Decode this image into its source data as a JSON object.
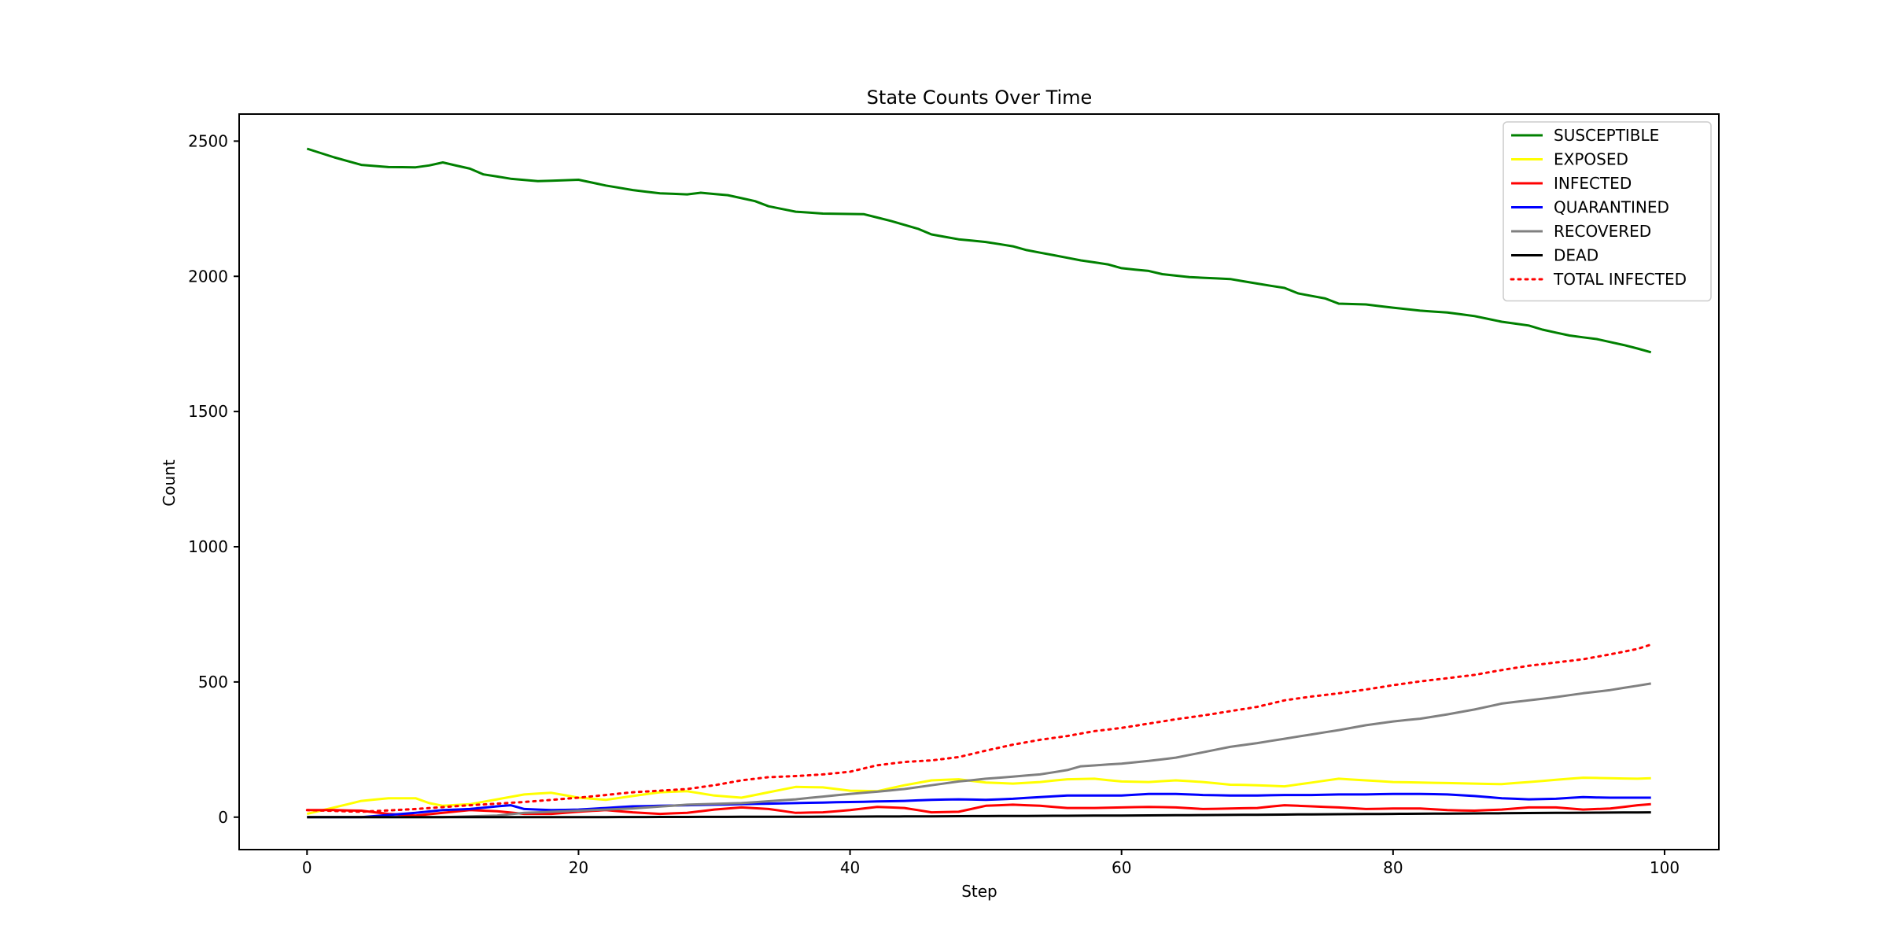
{
  "chart_data": {
    "type": "line",
    "title": "State Counts Over Time",
    "xlabel": "Step",
    "ylabel": "Count",
    "xlim": [
      -5,
      104
    ],
    "ylim": [
      -120,
      2600
    ],
    "xticks": [
      0,
      20,
      40,
      60,
      80,
      100
    ],
    "yticks": [
      0,
      500,
      1000,
      1500,
      2000,
      2500
    ],
    "grid": false,
    "legend_position": "top-right",
    "series": [
      {
        "name": "SUSCEPTIBLE",
        "color": "#008000",
        "style": "solid",
        "keyframes": [
          [
            0,
            2472
          ],
          [
            2,
            2440
          ],
          [
            4,
            2412
          ],
          [
            6,
            2404
          ],
          [
            8,
            2403
          ],
          [
            9,
            2410
          ],
          [
            10,
            2421
          ],
          [
            12,
            2398
          ],
          [
            13,
            2377
          ],
          [
            15,
            2361
          ],
          [
            17,
            2352
          ],
          [
            20,
            2357
          ],
          [
            22,
            2336
          ],
          [
            24,
            2319
          ],
          [
            26,
            2307
          ],
          [
            28,
            2303
          ],
          [
            29,
            2309
          ],
          [
            31,
            2300
          ],
          [
            33,
            2278
          ],
          [
            34,
            2259
          ],
          [
            36,
            2239
          ],
          [
            38,
            2232
          ],
          [
            41,
            2230
          ],
          [
            43,
            2205
          ],
          [
            45,
            2176
          ],
          [
            46,
            2155
          ],
          [
            48,
            2137
          ],
          [
            50,
            2127
          ],
          [
            52,
            2111
          ],
          [
            53,
            2097
          ],
          [
            55,
            2078
          ],
          [
            57,
            2059
          ],
          [
            59,
            2044
          ],
          [
            60,
            2030
          ],
          [
            62,
            2020
          ],
          [
            63,
            2008
          ],
          [
            65,
            1997
          ],
          [
            68,
            1990
          ],
          [
            70,
            1973
          ],
          [
            72,
            1957
          ],
          [
            73,
            1937
          ],
          [
            75,
            1918
          ],
          [
            76,
            1899
          ],
          [
            78,
            1896
          ],
          [
            80,
            1884
          ],
          [
            82,
            1873
          ],
          [
            84,
            1866
          ],
          [
            86,
            1853
          ],
          [
            88,
            1832
          ],
          [
            90,
            1818
          ],
          [
            91,
            1803
          ],
          [
            93,
            1781
          ],
          [
            95,
            1768
          ],
          [
            97,
            1746
          ],
          [
            98,
            1733
          ],
          [
            99,
            1719
          ]
        ]
      },
      {
        "name": "EXPOSED",
        "color": "#ffff00",
        "style": "solid",
        "keyframes": [
          [
            0,
            12
          ],
          [
            2,
            36
          ],
          [
            4,
            60
          ],
          [
            6,
            70
          ],
          [
            8,
            70
          ],
          [
            9,
            52
          ],
          [
            10,
            42
          ],
          [
            12,
            48
          ],
          [
            14,
            66
          ],
          [
            16,
            84
          ],
          [
            18,
            90
          ],
          [
            20,
            72
          ],
          [
            22,
            64
          ],
          [
            24,
            78
          ],
          [
            26,
            92
          ],
          [
            28,
            96
          ],
          [
            30,
            80
          ],
          [
            32,
            72
          ],
          [
            34,
            92
          ],
          [
            36,
            112
          ],
          [
            38,
            110
          ],
          [
            40,
            98
          ],
          [
            42,
            96
          ],
          [
            44,
            118
          ],
          [
            46,
            136
          ],
          [
            48,
            140
          ],
          [
            50,
            128
          ],
          [
            52,
            124
          ],
          [
            54,
            130
          ],
          [
            56,
            140
          ],
          [
            58,
            142
          ],
          [
            60,
            132
          ],
          [
            62,
            130
          ],
          [
            64,
            136
          ],
          [
            66,
            130
          ],
          [
            68,
            120
          ],
          [
            70,
            118
          ],
          [
            72,
            114
          ],
          [
            74,
            128
          ],
          [
            76,
            142
          ],
          [
            78,
            136
          ],
          [
            80,
            130
          ],
          [
            82,
            128
          ],
          [
            84,
            126
          ],
          [
            86,
            124
          ],
          [
            88,
            122
          ],
          [
            90,
            130
          ],
          [
            92,
            138
          ],
          [
            94,
            146
          ],
          [
            96,
            144
          ],
          [
            98,
            142
          ],
          [
            99,
            144
          ]
        ]
      },
      {
        "name": "INFECTED",
        "color": "#ff0000",
        "style": "solid",
        "keyframes": [
          [
            0,
            26
          ],
          [
            2,
            26
          ],
          [
            4,
            24
          ],
          [
            6,
            12
          ],
          [
            8,
            6
          ],
          [
            10,
            16
          ],
          [
            12,
            26
          ],
          [
            14,
            22
          ],
          [
            16,
            12
          ],
          [
            18,
            12
          ],
          [
            20,
            20
          ],
          [
            22,
            26
          ],
          [
            24,
            18
          ],
          [
            26,
            12
          ],
          [
            28,
            16
          ],
          [
            30,
            28
          ],
          [
            32,
            36
          ],
          [
            34,
            30
          ],
          [
            36,
            16
          ],
          [
            38,
            18
          ],
          [
            40,
            26
          ],
          [
            42,
            38
          ],
          [
            44,
            34
          ],
          [
            46,
            18
          ],
          [
            48,
            20
          ],
          [
            50,
            42
          ],
          [
            52,
            46
          ],
          [
            54,
            42
          ],
          [
            56,
            34
          ],
          [
            58,
            34
          ],
          [
            60,
            36
          ],
          [
            62,
            38
          ],
          [
            64,
            36
          ],
          [
            66,
            30
          ],
          [
            68,
            32
          ],
          [
            70,
            34
          ],
          [
            72,
            44
          ],
          [
            74,
            40
          ],
          [
            76,
            36
          ],
          [
            78,
            30
          ],
          [
            80,
            32
          ],
          [
            82,
            32
          ],
          [
            84,
            26
          ],
          [
            86,
            24
          ],
          [
            88,
            28
          ],
          [
            90,
            36
          ],
          [
            92,
            36
          ],
          [
            94,
            28
          ],
          [
            96,
            32
          ],
          [
            98,
            44
          ],
          [
            99,
            48
          ]
        ]
      },
      {
        "name": "QUARANTINED",
        "color": "#0000ff",
        "style": "solid",
        "keyframes": [
          [
            0,
            0
          ],
          [
            4,
            0
          ],
          [
            6,
            8
          ],
          [
            8,
            16
          ],
          [
            10,
            26
          ],
          [
            12,
            30
          ],
          [
            14,
            40
          ],
          [
            15,
            44
          ],
          [
            16,
            30
          ],
          [
            18,
            26
          ],
          [
            20,
            28
          ],
          [
            22,
            34
          ],
          [
            24,
            40
          ],
          [
            26,
            42
          ],
          [
            28,
            44
          ],
          [
            30,
            46
          ],
          [
            32,
            48
          ],
          [
            34,
            50
          ],
          [
            36,
            52
          ],
          [
            38,
            54
          ],
          [
            40,
            56
          ],
          [
            42,
            58
          ],
          [
            44,
            60
          ],
          [
            46,
            64
          ],
          [
            48,
            66
          ],
          [
            50,
            64
          ],
          [
            52,
            68
          ],
          [
            54,
            74
          ],
          [
            56,
            80
          ],
          [
            58,
            80
          ],
          [
            60,
            80
          ],
          [
            62,
            86
          ],
          [
            64,
            86
          ],
          [
            66,
            82
          ],
          [
            68,
            80
          ],
          [
            70,
            80
          ],
          [
            72,
            82
          ],
          [
            74,
            82
          ],
          [
            76,
            84
          ],
          [
            78,
            84
          ],
          [
            80,
            86
          ],
          [
            82,
            86
          ],
          [
            84,
            84
          ],
          [
            86,
            78
          ],
          [
            88,
            70
          ],
          [
            90,
            66
          ],
          [
            92,
            68
          ],
          [
            94,
            74
          ],
          [
            96,
            72
          ],
          [
            98,
            72
          ],
          [
            99,
            72
          ]
        ]
      },
      {
        "name": "RECOVERED",
        "color": "#808080",
        "style": "solid",
        "keyframes": [
          [
            0,
            0
          ],
          [
            10,
            0
          ],
          [
            14,
            6
          ],
          [
            16,
            16
          ],
          [
            20,
            24
          ],
          [
            24,
            32
          ],
          [
            28,
            46
          ],
          [
            32,
            52
          ],
          [
            36,
            66
          ],
          [
            40,
            86
          ],
          [
            42,
            94
          ],
          [
            44,
            104
          ],
          [
            46,
            118
          ],
          [
            48,
            132
          ],
          [
            50,
            142
          ],
          [
            52,
            150
          ],
          [
            54,
            158
          ],
          [
            56,
            174
          ],
          [
            57,
            188
          ],
          [
            60,
            198
          ],
          [
            62,
            208
          ],
          [
            64,
            220
          ],
          [
            66,
            240
          ],
          [
            68,
            260
          ],
          [
            70,
            274
          ],
          [
            72,
            290
          ],
          [
            74,
            306
          ],
          [
            76,
            322
          ],
          [
            78,
            340
          ],
          [
            80,
            354
          ],
          [
            82,
            364
          ],
          [
            84,
            380
          ],
          [
            86,
            398
          ],
          [
            88,
            420
          ],
          [
            90,
            432
          ],
          [
            92,
            444
          ],
          [
            94,
            458
          ],
          [
            96,
            470
          ],
          [
            98,
            486
          ],
          [
            99,
            494
          ]
        ]
      },
      {
        "name": "DEAD",
        "color": "#000000",
        "style": "solid",
        "keyframes": [
          [
            0,
            0
          ],
          [
            20,
            0
          ],
          [
            40,
            2
          ],
          [
            60,
            6
          ],
          [
            80,
            12
          ],
          [
            99,
            18
          ]
        ]
      },
      {
        "name": "TOTAL INFECTED",
        "color": "#ff0000",
        "style": "dotted",
        "keyframes": [
          [
            0,
            26
          ],
          [
            4,
            20
          ],
          [
            8,
            30
          ],
          [
            12,
            44
          ],
          [
            16,
            56
          ],
          [
            20,
            72
          ],
          [
            24,
            92
          ],
          [
            28,
            104
          ],
          [
            30,
            118
          ],
          [
            32,
            136
          ],
          [
            34,
            148
          ],
          [
            36,
            152
          ],
          [
            38,
            158
          ],
          [
            40,
            168
          ],
          [
            42,
            192
          ],
          [
            44,
            204
          ],
          [
            46,
            210
          ],
          [
            48,
            222
          ],
          [
            50,
            246
          ],
          [
            52,
            268
          ],
          [
            54,
            286
          ],
          [
            56,
            300
          ],
          [
            58,
            318
          ],
          [
            60,
            330
          ],
          [
            62,
            346
          ],
          [
            64,
            362
          ],
          [
            66,
            376
          ],
          [
            68,
            392
          ],
          [
            70,
            408
          ],
          [
            72,
            432
          ],
          [
            74,
            446
          ],
          [
            76,
            458
          ],
          [
            78,
            472
          ],
          [
            80,
            488
          ],
          [
            82,
            502
          ],
          [
            84,
            514
          ],
          [
            86,
            526
          ],
          [
            88,
            544
          ],
          [
            90,
            560
          ],
          [
            92,
            572
          ],
          [
            94,
            584
          ],
          [
            96,
            602
          ],
          [
            98,
            622
          ],
          [
            99,
            638
          ]
        ]
      }
    ]
  }
}
